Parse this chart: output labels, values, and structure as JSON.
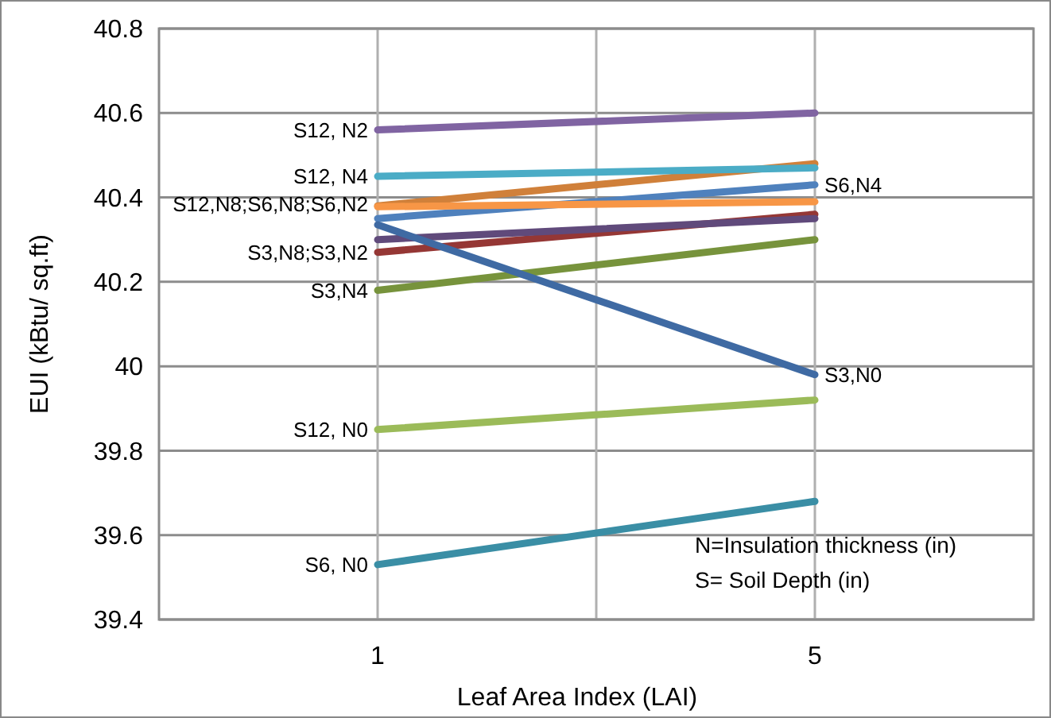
{
  "chart_data": {
    "type": "line",
    "xlabel": "Leaf Area Index (LAI)",
    "ylabel": "EUI (kBtu/ sq.ft)",
    "categories": [
      "1",
      "5"
    ],
    "ylim": [
      39.4,
      40.8
    ],
    "yticks": [
      39.4,
      39.6,
      39.8,
      40,
      40.2,
      40.4,
      40.6,
      40.8
    ],
    "grid": true,
    "marker": "none",
    "line_style": "solid",
    "series": [
      {
        "color": "#3a8ea5",
        "values": [
          39.53,
          39.68
        ]
      },
      {
        "color": "#9bbb59",
        "values": [
          39.85,
          39.92
        ]
      },
      {
        "color": "#4f81bd",
        "values": [
          40.35,
          40.43
        ]
      },
      {
        "color": "#77933c",
        "values": [
          40.18,
          40.3
        ]
      },
      {
        "color": "#953735",
        "values": [
          40.27,
          40.36
        ]
      },
      {
        "color": "#604a7b",
        "values": [
          40.3,
          40.35
        ]
      },
      {
        "color": "#3f6aa3",
        "values": [
          40.335,
          39.98
        ]
      },
      {
        "color": "#d0803a",
        "values": [
          40.38,
          40.48
        ]
      },
      {
        "color": "#f79646",
        "values": [
          40.378,
          40.39
        ]
      },
      {
        "color": "#4bacc6",
        "values": [
          40.45,
          40.47
        ]
      },
      {
        "color": "#8064a2",
        "values": [
          40.56,
          40.6
        ]
      }
    ],
    "annotations": [
      {
        "text": "S12, N2",
        "x": "1",
        "y": 40.56
      },
      {
        "text": "S12, N4",
        "x": "1",
        "y": 40.45
      },
      {
        "text": "S12,N8;S6,N8;S6,N2",
        "x": "1",
        "y": 40.385
      },
      {
        "text": "S3,N8;S3,N2",
        "x": "1",
        "y": 40.27
      },
      {
        "text": "S3,N4",
        "x": "1",
        "y": 40.18
      },
      {
        "text": "S12, N0",
        "x": "1",
        "y": 39.85
      },
      {
        "text": "S6, N0",
        "x": "1",
        "y": 39.53
      },
      {
        "text": "S6,N4",
        "x": "5",
        "y": 40.43
      },
      {
        "text": "S3,N0",
        "x": "5",
        "y": 39.98
      },
      "N=Insulation thickness (in)",
      "S= Soil Depth (in)"
    ]
  }
}
